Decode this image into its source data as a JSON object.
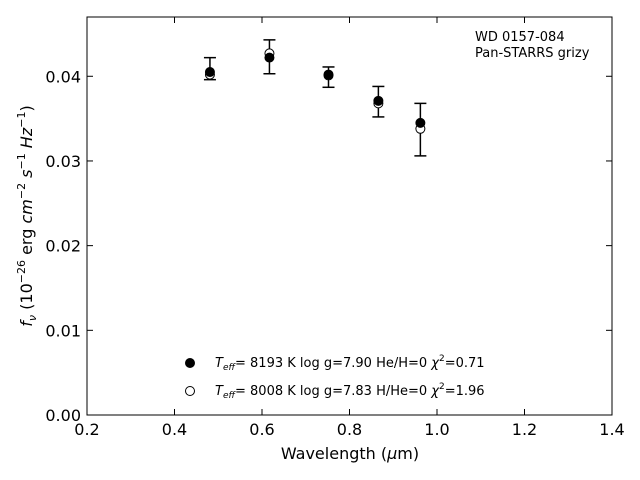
{
  "chart_data": {
    "type": "scatter",
    "annotation": [
      "WD 0157-084",
      "Pan-STARRS grizy"
    ],
    "xlabel": {
      "prefix": "Wavelength (",
      "mu": "μ",
      "suffix": "m)"
    },
    "ylabel": {
      "f": "f",
      "nu": "ν",
      "unit_open": " (10",
      "exp1": "−26",
      "erg": " erg ",
      "cm": "cm",
      "exp2": "−2",
      "s": " s",
      "exp3": "−1",
      "hz": " Hz",
      "exp4": "−1",
      "close": ")"
    },
    "xlim": [
      0.2,
      1.4
    ],
    "ylim": [
      0.0,
      0.047
    ],
    "x_ticks": [
      {
        "v": 0.2,
        "label": "0.2"
      },
      {
        "v": 0.4,
        "label": "0.4"
      },
      {
        "v": 0.6,
        "label": "0.6"
      },
      {
        "v": 0.8,
        "label": "0.8"
      },
      {
        "v": 1.0,
        "label": "1.0"
      },
      {
        "v": 1.2,
        "label": "1.2"
      },
      {
        "v": 1.4,
        "label": "1.4"
      }
    ],
    "y_ticks": [
      {
        "v": 0.0,
        "label": "0.00"
      },
      {
        "v": 0.01,
        "label": "0.01"
      },
      {
        "v": 0.02,
        "label": "0.02"
      },
      {
        "v": 0.03,
        "label": "0.03"
      },
      {
        "v": 0.04,
        "label": "0.04"
      }
    ],
    "observed": {
      "x": [
        0.481,
        0.617,
        0.752,
        0.866,
        0.962
      ],
      "y": [
        0.0409,
        0.0423,
        0.0399,
        0.037,
        0.0337
      ],
      "yerr": [
        0.0013,
        0.002,
        0.0012,
        0.0018,
        0.0031
      ]
    },
    "series": [
      {
        "marker": "filled",
        "legend": {
          "T": "T",
          "sub": "eff",
          "text": "=  8193 K  log g=7.90  He/H=0  ",
          "chi": "χ",
          "sup": "2",
          "val": "=0.71"
        },
        "x": [
          0.481,
          0.617,
          0.752,
          0.866,
          0.962
        ],
        "y": [
          0.0405,
          0.0422,
          0.0402,
          0.0371,
          0.0345
        ]
      },
      {
        "marker": "open",
        "legend": {
          "T": "T",
          "sub": "eff",
          "text": "=  8008 K  log g=7.83  H/He=0  ",
          "chi": "χ",
          "sup": "2",
          "val": "=1.96"
        },
        "x": [
          0.481,
          0.617,
          0.752,
          0.866,
          0.962
        ],
        "y": [
          0.0402,
          0.0427,
          0.0401,
          0.0368,
          0.0338
        ]
      }
    ]
  }
}
